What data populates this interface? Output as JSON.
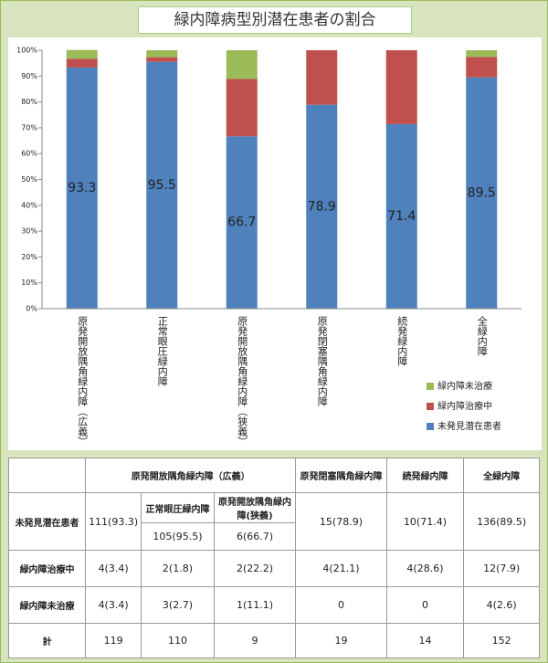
{
  "chart_data": {
    "type": "stacked_bar",
    "title": "緑内障病型別潜在患者の割合",
    "categories": [
      "原発開放隅角緑内障（広義）",
      "正常眼圧緑内障",
      "原発開放隅角緑内障（狭義）",
      "原発閉塞隅角緑内障",
      "続発緑内障",
      "全緑内障"
    ],
    "series": [
      {
        "name": "未発見潜在患者",
        "color": "#4f81bd",
        "values": [
          93.3,
          95.5,
          66.7,
          78.9,
          71.4,
          89.5
        ],
        "show_labels": true
      },
      {
        "name": "緑内障治療中",
        "color": "#c0504d",
        "values": [
          3.4,
          1.8,
          22.2,
          21.1,
          28.6,
          7.9
        ]
      },
      {
        "name": "緑内障未治療",
        "color": "#9bbb59",
        "values": [
          3.4,
          2.7,
          11.1,
          0,
          0,
          2.6
        ]
      }
    ],
    "ylim": [
      0,
      100
    ],
    "yticks": [
      {
        "value": 0,
        "label": "0%"
      },
      {
        "value": 10,
        "label": "10%"
      },
      {
        "value": 20,
        "label": "20%"
      },
      {
        "value": 30,
        "label": "30%"
      },
      {
        "value": 40,
        "label": "40%"
      },
      {
        "value": 50,
        "label": "50%"
      },
      {
        "value": 60,
        "label": "60%"
      },
      {
        "value": 70,
        "label": "70%"
      },
      {
        "value": 80,
        "label": "80%"
      },
      {
        "value": 90,
        "label": "90%"
      },
      {
        "value": 100,
        "label": "100%"
      }
    ],
    "grid": false,
    "legend": "right"
  },
  "table": {
    "header": [
      "原発開放隅角緑内障（広義）",
      "原発閉塞隅角緑内障",
      "続発緑内障",
      "全緑内障"
    ],
    "subheader": [
      "正常眼圧緑内障",
      "原発開放隅角緑内障(狭義)"
    ],
    "rows": [
      [
        "未発見潜在患者",
        "111(93.3)",
        "105(95.5)",
        "6(66.7)",
        "15(78.9)",
        "10(71.4)",
        "136(89.5)"
      ],
      [
        "緑内障治療中",
        "4(3.4)",
        "2(1.8)",
        "2(22.2)",
        "4(21.1)",
        "4(28.6)",
        "12(7.9)"
      ],
      [
        "緑内障未治療",
        "4(3.4)",
        "3(2.7)",
        "1(11.1)",
        "0",
        "0",
        "4(2.6)"
      ],
      [
        "計",
        "119",
        "110",
        "9",
        "19",
        "14",
        "152"
      ]
    ]
  }
}
